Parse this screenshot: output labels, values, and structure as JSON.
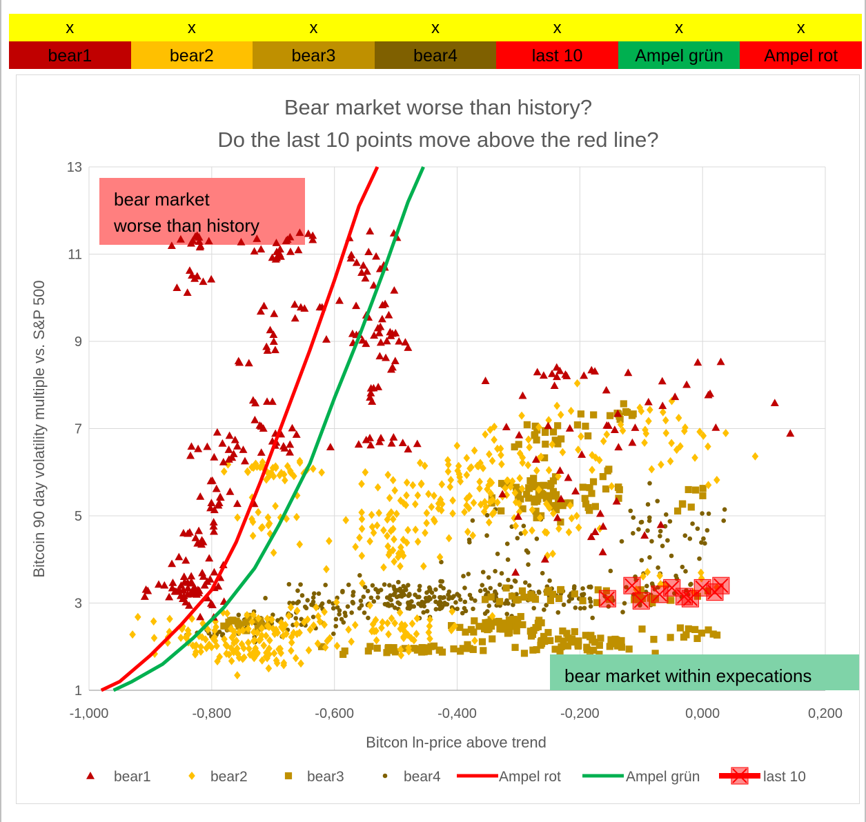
{
  "header": {
    "marks": [
      "x",
      "x",
      "x",
      "x",
      "x",
      "x",
      "x"
    ],
    "cells": [
      {
        "label": "bear1",
        "color": "#c00000"
      },
      {
        "label": "bear2",
        "color": "#ffc000"
      },
      {
        "label": "bear3",
        "color": "#bf9000"
      },
      {
        "label": "bear4",
        "color": "#7f6000"
      },
      {
        "label": "last 10",
        "color": "#ff0000"
      },
      {
        "label": "Ampel grün",
        "color": "#00b050"
      },
      {
        "label": "Ampel rot",
        "color": "#ff0000"
      }
    ]
  },
  "chart_data": {
    "type": "scatter",
    "title_lines": [
      "Bear market worse than history?",
      "Do the last 10 points move above the red line?"
    ],
    "xlabel": "Bitcon ln-price above trend",
    "ylabel": "Bitcoin 90 day volatility multiple vs. S&P 500",
    "xlim": [
      -1.0,
      0.2
    ],
    "ylim": [
      1,
      13
    ],
    "x_ticks": [
      -1.0,
      -0.8,
      -0.6,
      -0.4,
      -0.2,
      0.0,
      0.2
    ],
    "x_tick_labels": [
      "-1,000",
      "-0,800",
      "-0,600",
      "-0,400",
      "-0,200",
      "0,000",
      "0,200"
    ],
    "y_ticks": [
      1,
      3,
      5,
      7,
      9,
      11,
      13
    ],
    "y_tick_labels": [
      "1",
      "3",
      "5",
      "7",
      "9",
      "11",
      "13"
    ],
    "grid": true,
    "legend_position": "bottom",
    "annotations": [
      {
        "lines": [
          "bear market",
          "worse than history"
        ],
        "color": "#ff7f7f"
      },
      {
        "lines": [
          "bear market within expecations"
        ],
        "color": "#7fd3a8"
      }
    ],
    "series": [
      {
        "name": "bear1",
        "marker": "triangle",
        "color": "#c00000",
        "clusters": [
          {
            "cx": -0.83,
            "cy": 3.3,
            "sx": 0.03,
            "sy": 0.25,
            "n": 55
          },
          {
            "cx": -0.83,
            "cy": 4.4,
            "sx": 0.02,
            "sy": 0.25,
            "n": 12
          },
          {
            "cx": -0.79,
            "cy": 5.4,
            "sx": 0.02,
            "sy": 0.3,
            "n": 15
          },
          {
            "cx": -0.8,
            "cy": 6.4,
            "sx": 0.03,
            "sy": 0.2,
            "n": 10
          },
          {
            "cx": -0.83,
            "cy": 10.3,
            "sx": 0.02,
            "sy": 0.25,
            "n": 8
          },
          {
            "cx": -0.82,
            "cy": 11.3,
            "sx": 0.03,
            "sy": 0.12,
            "n": 12
          },
          {
            "cx": -0.76,
            "cy": 6.7,
            "sx": 0.01,
            "sy": 0.2,
            "n": 6
          },
          {
            "cx": -0.76,
            "cy": 8.5,
            "sx": 0.01,
            "sy": 0.1,
            "n": 3
          },
          {
            "cx": -0.7,
            "cy": 6.7,
            "sx": 0.02,
            "sy": 0.2,
            "n": 16
          },
          {
            "cx": -0.72,
            "cy": 7.5,
            "sx": 0.01,
            "sy": 0.2,
            "n": 5
          },
          {
            "cx": -0.7,
            "cy": 9.0,
            "sx": 0.01,
            "sy": 0.1,
            "n": 6
          },
          {
            "cx": -0.69,
            "cy": 9.7,
            "sx": 0.03,
            "sy": 0.1,
            "n": 8
          },
          {
            "cx": -0.69,
            "cy": 11.1,
            "sx": 0.03,
            "sy": 0.15,
            "n": 14
          },
          {
            "cx": -0.65,
            "cy": 11.45,
            "sx": 0.02,
            "sy": 0.08,
            "n": 6
          },
          {
            "cx": -0.56,
            "cy": 9.4,
            "sx": 0.02,
            "sy": 0.3,
            "n": 14
          },
          {
            "cx": -0.54,
            "cy": 10.9,
            "sx": 0.02,
            "sy": 0.4,
            "n": 18
          },
          {
            "cx": -0.51,
            "cy": 9.1,
            "sx": 0.02,
            "sy": 0.5,
            "n": 20
          },
          {
            "cx": -0.54,
            "cy": 7.9,
            "sx": 0.01,
            "sy": 0.12,
            "n": 6
          },
          {
            "cx": -0.53,
            "cy": 6.7,
            "sx": 0.03,
            "sy": 0.08,
            "n": 12
          },
          {
            "cx": -0.26,
            "cy": 8.1,
            "sx": 0.04,
            "sy": 0.2,
            "n": 14
          },
          {
            "cx": -0.2,
            "cy": 7.0,
            "sx": 0.12,
            "sy": 0.4,
            "n": 14
          },
          {
            "cx": -0.05,
            "cy": 7.9,
            "sx": 0.06,
            "sy": 0.3,
            "n": 12
          },
          {
            "cx": -0.3,
            "cy": 5.4,
            "sx": 0.05,
            "sy": 0.5,
            "n": 8
          },
          {
            "cx": -0.15,
            "cy": 4.3,
            "sx": 0.08,
            "sy": 0.6,
            "n": 10
          }
        ]
      },
      {
        "name": "bear2",
        "marker": "diamond",
        "color": "#ffc000",
        "clusters": [
          {
            "cx": -0.82,
            "cy": 2.2,
            "sx": 0.06,
            "sy": 0.25,
            "n": 60
          },
          {
            "cx": -0.74,
            "cy": 1.9,
            "sx": 0.04,
            "sy": 0.25,
            "n": 45
          },
          {
            "cx": -0.69,
            "cy": 6.0,
            "sx": 0.04,
            "sy": 0.12,
            "n": 35
          },
          {
            "cx": -0.7,
            "cy": 4.8,
            "sx": 0.04,
            "sy": 0.4,
            "n": 20
          },
          {
            "cx": -0.68,
            "cy": 2.4,
            "sx": 0.05,
            "sy": 0.3,
            "n": 50
          },
          {
            "cx": -0.5,
            "cy": 2.4,
            "sx": 0.06,
            "sy": 0.25,
            "n": 45
          },
          {
            "cx": -0.47,
            "cy": 5.1,
            "sx": 0.05,
            "sy": 0.4,
            "n": 45
          },
          {
            "cx": -0.5,
            "cy": 4.3,
            "sx": 0.04,
            "sy": 0.3,
            "n": 30
          },
          {
            "cx": -0.4,
            "cy": 5.9,
            "sx": 0.03,
            "sy": 0.25,
            "n": 25
          },
          {
            "cx": -0.33,
            "cy": 6.2,
            "sx": 0.04,
            "sy": 0.35,
            "n": 30
          },
          {
            "cx": -0.33,
            "cy": 5.2,
            "sx": 0.04,
            "sy": 0.3,
            "n": 30
          },
          {
            "cx": -0.25,
            "cy": 4.8,
            "sx": 0.03,
            "sy": 0.3,
            "n": 15
          },
          {
            "cx": -0.15,
            "cy": 6.4,
            "sx": 0.08,
            "sy": 0.5,
            "n": 25
          },
          {
            "cx": -0.05,
            "cy": 6.8,
            "sx": 0.05,
            "sy": 0.6,
            "n": 20
          },
          {
            "cx": -0.25,
            "cy": 7.0,
            "sx": 0.04,
            "sy": 0.4,
            "n": 10
          },
          {
            "cx": -0.06,
            "cy": 3.5,
            "sx": 0.05,
            "sy": 0.2,
            "n": 10
          }
        ]
      },
      {
        "name": "bear3",
        "marker": "square",
        "color": "#bf9000",
        "clusters": [
          {
            "cx": -0.75,
            "cy": 2.5,
            "sx": 0.03,
            "sy": 0.08,
            "n": 20
          },
          {
            "cx": -0.45,
            "cy": 1.95,
            "sx": 0.06,
            "sy": 0.05,
            "n": 40
          },
          {
            "cx": -0.32,
            "cy": 2.5,
            "sx": 0.04,
            "sy": 0.08,
            "n": 45
          },
          {
            "cx": -0.22,
            "cy": 2.1,
            "sx": 0.06,
            "sy": 0.15,
            "n": 60
          },
          {
            "cx": -0.26,
            "cy": 5.4,
            "sx": 0.04,
            "sy": 0.3,
            "n": 60
          },
          {
            "cx": -0.25,
            "cy": 6.9,
            "sx": 0.04,
            "sy": 0.2,
            "n": 20
          },
          {
            "cx": -0.15,
            "cy": 5.6,
            "sx": 0.03,
            "sy": 0.25,
            "n": 12
          },
          {
            "cx": -0.14,
            "cy": 7.3,
            "sx": 0.02,
            "sy": 0.15,
            "n": 12
          },
          {
            "cx": -0.28,
            "cy": 3.2,
            "sx": 0.03,
            "sy": 0.1,
            "n": 20
          },
          {
            "cx": -0.1,
            "cy": 3.2,
            "sx": 0.05,
            "sy": 0.1,
            "n": 20
          },
          {
            "cx": -0.02,
            "cy": 2.3,
            "sx": 0.03,
            "sy": 0.1,
            "n": 10
          },
          {
            "cx": -0.02,
            "cy": 5.3,
            "sx": 0.02,
            "sy": 0.3,
            "n": 8
          }
        ]
      },
      {
        "name": "bear4",
        "marker": "circle",
        "color": "#7f6000",
        "clusters": [
          {
            "cx": -0.8,
            "cy": 2.3,
            "sx": 0.02,
            "sy": 0.06,
            "n": 15
          },
          {
            "cx": -0.72,
            "cy": 2.5,
            "sx": 0.03,
            "sy": 0.15,
            "n": 30
          },
          {
            "cx": -0.63,
            "cy": 2.8,
            "sx": 0.04,
            "sy": 0.25,
            "n": 50
          },
          {
            "cx": -0.5,
            "cy": 3.2,
            "sx": 0.05,
            "sy": 0.2,
            "n": 90
          },
          {
            "cx": -0.42,
            "cy": 3.0,
            "sx": 0.04,
            "sy": 0.15,
            "n": 60
          },
          {
            "cx": -0.32,
            "cy": 3.3,
            "sx": 0.04,
            "sy": 0.25,
            "n": 40
          },
          {
            "cx": -0.22,
            "cy": 3.1,
            "sx": 0.04,
            "sy": 0.12,
            "n": 40
          },
          {
            "cx": -0.08,
            "cy": 3.4,
            "sx": 0.05,
            "sy": 0.4,
            "n": 40
          },
          {
            "cx": -0.06,
            "cy": 4.6,
            "sx": 0.06,
            "sy": 0.35,
            "n": 35
          },
          {
            "cx": -0.32,
            "cy": 4.3,
            "sx": 0.04,
            "sy": 0.4,
            "n": 20
          }
        ]
      },
      {
        "name": "Ampel rot",
        "marker": "line",
        "color": "#ff0000",
        "x": [
          -0.98,
          -0.95,
          -0.9,
          -0.85,
          -0.8,
          -0.76,
          -0.72,
          -0.68,
          -0.64,
          -0.6,
          -0.56,
          -0.53
        ],
        "y": [
          1.0,
          1.2,
          1.8,
          2.5,
          3.3,
          4.4,
          5.8,
          7.3,
          8.8,
          10.4,
          12.1,
          13.3
        ]
      },
      {
        "name": "Ampel grün",
        "marker": "line",
        "color": "#00b050",
        "x": [
          -0.96,
          -0.93,
          -0.88,
          -0.83,
          -0.78,
          -0.73,
          -0.69,
          -0.64,
          -0.6,
          -0.56,
          -0.52,
          -0.48,
          -0.455
        ],
        "y": [
          1.0,
          1.2,
          1.6,
          2.2,
          2.9,
          3.8,
          4.8,
          6.2,
          7.7,
          9.1,
          10.6,
          12.2,
          13.2
        ]
      },
      {
        "name": "last 10",
        "marker": "box",
        "color": "#ff0000",
        "x": [
          -0.155,
          -0.115,
          -0.1,
          -0.07,
          -0.05,
          -0.03,
          -0.02,
          0.0,
          0.02,
          0.03
        ],
        "y": [
          3.1,
          3.4,
          3.05,
          3.2,
          3.35,
          3.15,
          3.1,
          3.35,
          3.25,
          3.4
        ]
      }
    ]
  }
}
